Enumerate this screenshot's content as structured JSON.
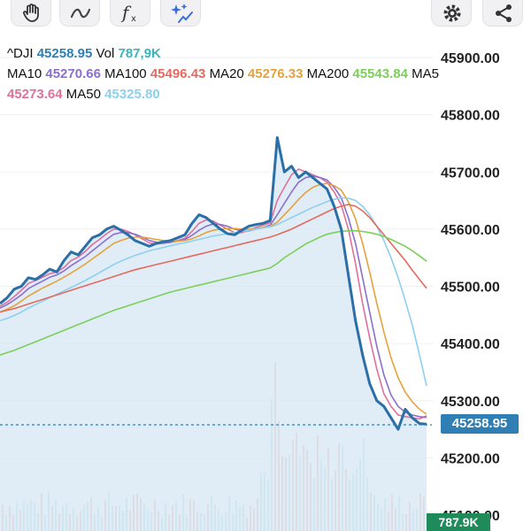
{
  "toolbar": {
    "icons": [
      "hand-icon",
      "wave-icon",
      "function-icon",
      "sparkle-chart-icon",
      "gear-icon",
      "share-icon"
    ]
  },
  "legend": {
    "symbol": "^DJI",
    "price": "45258.95",
    "vol_label": "Vol",
    "vol_value": "787,9K",
    "ma10_label": "MA10",
    "ma10_value": "45270.66",
    "ma100_label": "MA100",
    "ma100_value": "45496.43",
    "ma20_label": "MA20",
    "ma20_value": "45276.33",
    "ma200_label": "MA200",
    "ma200_value": "45543.84",
    "ma5_label": "MA5",
    "ma5_value": "45273.64",
    "ma50_label": "MA50",
    "ma50_value": "45325.80"
  },
  "price_tag": "45258.95",
  "volume_tag": "787.9K",
  "colors": {
    "price_line": "#2a6fa8",
    "ma5": "#e0709a",
    "ma10": "#8b6fcf",
    "ma20": "#e6a23c",
    "ma50": "#8dd0ee",
    "ma100": "#e46a5e",
    "ma200": "#7ccf5a",
    "area_fill": "#d6e7f3",
    "volume_up": "#f2b8b8",
    "volume_down": "#b8dfe6"
  },
  "chart_data": {
    "type": "line",
    "symbol": "^DJI",
    "y_ticks": [
      "45900.00",
      "45800.00",
      "45700.00",
      "45600.00",
      "45500.00",
      "45400.00",
      "45300.00",
      "45200.00",
      "45100.00"
    ],
    "ylim": [
      45080,
      45930
    ],
    "current_price": 45258.95,
    "series": [
      {
        "name": "^DJI",
        "values": [
          45470,
          45480,
          45495,
          45500,
          45515,
          45512,
          45520,
          45530,
          45525,
          45545,
          45560,
          45555,
          45570,
          45585,
          45590,
          45600,
          45605,
          45598,
          45590,
          45580,
          45575,
          45570,
          45575,
          45578,
          45580,
          45585,
          45590,
          45610,
          45625,
          45620,
          45610,
          45600,
          45592,
          45590,
          45598,
          45605,
          45608,
          45610,
          45615,
          45760,
          45700,
          45710,
          45690,
          45700,
          45690,
          45680,
          45670,
          45640,
          45600,
          45520,
          45440,
          45380,
          45330,
          45300,
          45290,
          45270,
          45250,
          45285,
          45270,
          45260,
          45258.95
        ]
      },
      {
        "name": "MA5",
        "values": [
          45465,
          45472,
          45482,
          45493,
          45505,
          45510,
          45516,
          45522,
          45525,
          45533,
          45545,
          45551,
          45561,
          45573,
          45582,
          45592,
          45600,
          45600,
          45596,
          45590,
          45583,
          45576,
          45574,
          45575,
          45577,
          45580,
          45584,
          45596,
          45610,
          45616,
          45614,
          45607,
          45600,
          45594,
          45594,
          45598,
          45603,
          45607,
          45611,
          45650,
          45673,
          45695,
          45705,
          45700,
          45695,
          45690,
          45682,
          45665,
          45642,
          45600,
          45540,
          45470,
          45410,
          45355,
          45312,
          45290,
          45275,
          45272,
          45270,
          45268,
          45273.64
        ]
      },
      {
        "name": "MA10",
        "values": [
          45462,
          45468,
          45476,
          45485,
          45496,
          45503,
          45509,
          45516,
          45520,
          45527,
          45536,
          45544,
          45552,
          45562,
          45572,
          45582,
          45591,
          45594,
          45594,
          45591,
          45586,
          45580,
          45577,
          45576,
          45577,
          45579,
          45582,
          45589,
          45598,
          45605,
          45609,
          45608,
          45605,
          45600,
          45597,
          45597,
          45600,
          45603,
          45607,
          45625,
          45645,
          45665,
          45682,
          45690,
          45693,
          45690,
          45686,
          45673,
          45655,
          45620,
          45575,
          45515,
          45455,
          45395,
          45345,
          45310,
          45290,
          45280,
          45275,
          45272,
          45270.66
        ]
      },
      {
        "name": "MA20",
        "values": [
          45455,
          45460,
          45466,
          45474,
          45483,
          45490,
          45497,
          45503,
          45509,
          45516,
          45523,
          45531,
          45539,
          45548,
          45557,
          45566,
          45575,
          45580,
          45584,
          45586,
          45586,
          45584,
          45582,
          45580,
          45579,
          45579,
          45580,
          45583,
          45588,
          45594,
          45598,
          45600,
          45601,
          45601,
          45600,
          45600,
          45601,
          45603,
          45605,
          45612,
          45625,
          45638,
          45652,
          45664,
          45673,
          45678,
          45680,
          45676,
          45668,
          45648,
          45618,
          45575,
          45525,
          45470,
          45420,
          45375,
          45340,
          45315,
          45298,
          45285,
          45276.33
        ]
      },
      {
        "name": "MA50",
        "values": [
          45440,
          45444,
          45449,
          45455,
          45462,
          45468,
          45474,
          45480,
          45486,
          45492,
          45498,
          45504,
          45510,
          45517,
          45524,
          45531,
          45538,
          45544,
          45549,
          45554,
          45558,
          45562,
          45565,
          45568,
          45571,
          45574,
          45576,
          45579,
          45582,
          45585,
          45588,
          45590,
          45592,
          45594,
          45596,
          45598,
          45600,
          45602,
          45604,
          45608,
          45614,
          45620,
          45626,
          45632,
          45638,
          45643,
          45648,
          45652,
          45655,
          45654,
          45650,
          45640,
          45625,
          45605,
          45580,
          45550,
          45515,
          45475,
          45432,
          45380,
          45325.8
        ]
      },
      {
        "name": "MA100",
        "values": [
          45455,
          45458,
          45461,
          45465,
          45469,
          45473,
          45477,
          45481,
          45485,
          45489,
          45493,
          45497,
          45501,
          45505,
          45509,
          45513,
          45517,
          45521,
          45525,
          45529,
          45532,
          45535,
          45538,
          45541,
          45544,
          45547,
          45550,
          45553,
          45556,
          45559,
          45562,
          45565,
          45568,
          45571,
          45574,
          45577,
          45580,
          45583,
          45586,
          45590,
          45595,
          45600,
          45606,
          45612,
          45618,
          45624,
          45630,
          45636,
          45640,
          45643,
          45640,
          45632,
          45620,
          45605,
          45590,
          45575,
          45560,
          45545,
          45528,
          45512,
          45496.43
        ]
      },
      {
        "name": "MA200",
        "values": [
          45380,
          45384,
          45388,
          45393,
          45398,
          45403,
          45408,
          45413,
          45418,
          45423,
          45428,
          45433,
          45438,
          45443,
          45448,
          45453,
          45458,
          45462,
          45466,
          45470,
          45474,
          45478,
          45482,
          45486,
          45490,
          45493,
          45496,
          45499,
          45502,
          45505,
          45508,
          45511,
          45514,
          45517,
          45520,
          45523,
          45526,
          45529,
          45532,
          45540,
          45550,
          45558,
          45566,
          45574,
          45580,
          45586,
          45591,
          45594,
          45596,
          45597,
          45597,
          45596,
          45594,
          45591,
          45587,
          45582,
          45576,
          45570,
          45562,
          45553,
          45543.84
        ]
      }
    ],
    "volume_tag": "787.9K"
  }
}
